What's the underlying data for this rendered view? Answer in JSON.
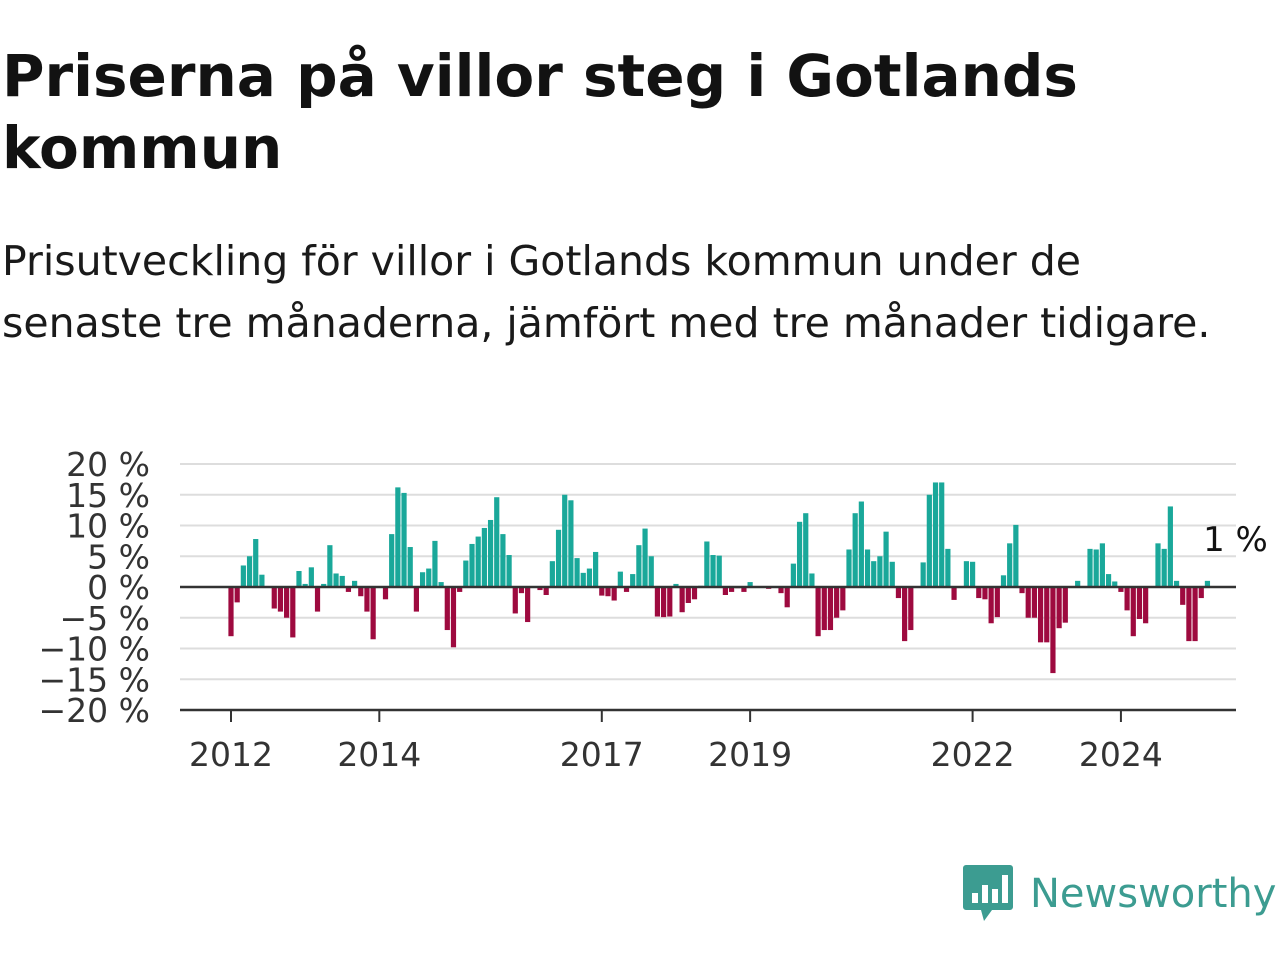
{
  "title": "Priserna på villor steg i Gotlands kommun",
  "subtitle": "Prisutveckling för villor i Gotlands kommun under de senaste tre månaderna, jämfört med tre månader tidigare.",
  "brand": {
    "name": "Newsworthy",
    "color": "#3c9c91"
  },
  "colors": {
    "positive": "#1aa89a",
    "negative": "#9e0a3f",
    "grid": "#dddddd",
    "axis": "#333333"
  },
  "chart_data": {
    "type": "bar",
    "x_start": "2012-01",
    "x_end": "2025-01",
    "x_ticks": [
      "2012",
      "2014",
      "2017",
      "2019",
      "2022",
      "2024"
    ],
    "y_ticks": [
      "20 %",
      "15 %",
      "10 %",
      "5 %",
      "0 %",
      "−5 %",
      "−10 %",
      "−15 %",
      "−20 %"
    ],
    "ylim": [
      -20,
      20
    ],
    "unit": "%",
    "last_value_label": "1 %",
    "grid": true,
    "legend": "none",
    "values": [
      -8,
      -2.5,
      3.5,
      5,
      7.8,
      2,
      0,
      -3.5,
      -4,
      -5,
      -8.2,
      2.6,
      0.5,
      3.2,
      -4,
      0.5,
      6.8,
      2.2,
      1.8,
      -0.8,
      1,
      -1.5,
      -4,
      -8.5,
      0,
      -2,
      8.6,
      16.2,
      15.3,
      6.5,
      -4,
      2.4,
      3,
      7.5,
      0.8,
      -7,
      -9.8,
      -0.8,
      4.3,
      7,
      8.2,
      9.6,
      10.9,
      14.6,
      8.6,
      5.2,
      -4.3,
      -1,
      -5.7,
      0,
      -0.5,
      -1.3,
      4.2,
      9.3,
      15,
      14.1,
      4.7,
      2.3,
      3,
      5.7,
      -1.4,
      -1.5,
      -2.2,
      2.5,
      -0.8,
      2.1,
      6.8,
      9.5,
      5,
      -4.8,
      -4.9,
      -4.8,
      0.5,
      -4.1,
      -2.6,
      -2,
      0.2,
      7.4,
      5.2,
      5.1,
      -1.3,
      -0.8,
      -0.2,
      -0.8,
      0.8,
      0,
      0,
      -0.3,
      0,
      -1,
      -3.3,
      3.8,
      10.6,
      12,
      2.2,
      -8,
      -7,
      -7,
      -5,
      -3.8,
      6.1,
      12,
      13.9,
      6.1,
      4.2,
      5,
      9,
      4.1,
      -1.8,
      -8.8,
      -7,
      0,
      4,
      15,
      17,
      17,
      6.2,
      -2.1,
      0,
      4.2,
      4.1,
      -1.8,
      -2,
      -5.9,
      -4.9,
      1.9,
      7.1,
      10.1,
      -1,
      -5,
      -5,
      -9,
      -9,
      -14,
      -6.7,
      -5.8,
      0,
      1,
      0,
      6.2,
      6.1,
      7.1,
      2.1,
      0.9,
      -0.8,
      -3.8,
      -8,
      -5.2,
      -5.9,
      0,
      7.1,
      6.2,
      13.1,
      1,
      -2.9,
      -8.8,
      -8.8,
      -1.8,
      1
    ]
  }
}
